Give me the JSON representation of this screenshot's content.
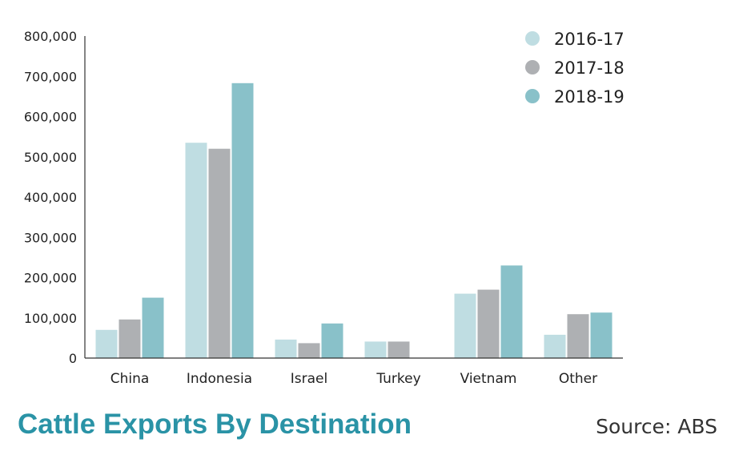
{
  "chart_data": {
    "type": "bar",
    "title": "Cattle Exports By Destination",
    "source": "Source: ABS",
    "xlabel": "",
    "ylabel": "",
    "categories": [
      "China",
      "Indonesia",
      "Israel",
      "Turkey",
      "Vietnam",
      "Other"
    ],
    "series": [
      {
        "name": "2016-17",
        "color": "#bfdde2",
        "values": [
          70000,
          535000,
          46000,
          41000,
          160000,
          58000
        ]
      },
      {
        "name": "2017-18",
        "color": "#aeb0b3",
        "values": [
          96000,
          520000,
          37000,
          41000,
          170000,
          109000
        ]
      },
      {
        "name": "2018-19",
        "color": "#89c1c9",
        "values": [
          150000,
          683000,
          86000,
          0,
          230000,
          113000
        ]
      }
    ],
    "ylim": [
      0,
      800000
    ],
    "yticks": [
      0,
      100000,
      200000,
      300000,
      400000,
      500000,
      600000,
      700000,
      800000
    ],
    "ytick_labels": [
      "0",
      "100,000",
      "200,000",
      "300,000",
      "400,000",
      "500,000",
      "600,000",
      "700,000",
      "800,000"
    ],
    "grid": false,
    "legend_position": "top-right"
  }
}
